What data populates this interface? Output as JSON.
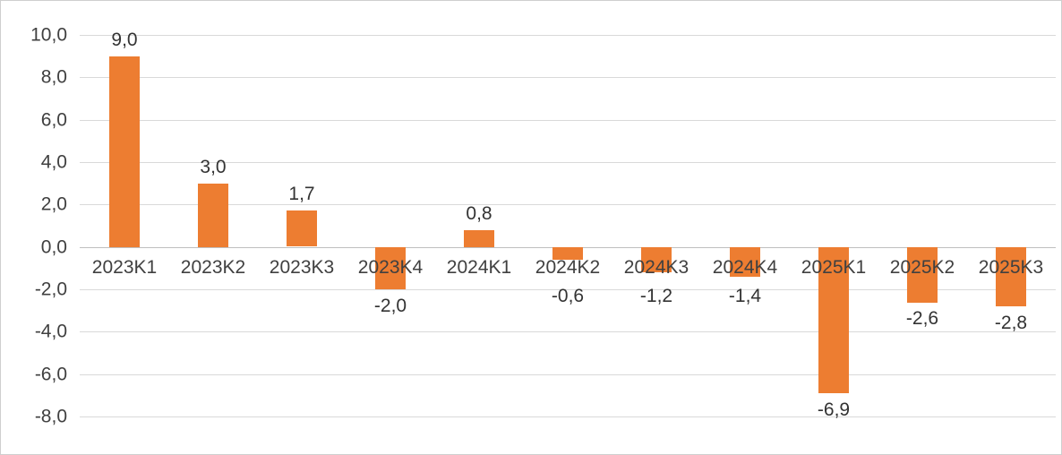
{
  "chart_data": {
    "type": "bar",
    "title": "",
    "xlabel": "",
    "ylabel": "",
    "categories": [
      "2023K1",
      "2023K2",
      "2023K3",
      "2023K4",
      "2024K1",
      "2024K2",
      "2024K3",
      "2024K4",
      "2025K1",
      "2025K2",
      "2025K3"
    ],
    "values": [
      9.0,
      3.0,
      1.7,
      -2.0,
      0.8,
      -0.6,
      -1.2,
      -1.4,
      -6.9,
      -2.6,
      -2.8
    ],
    "data_labels": [
      "9,0",
      "3,0",
      "1,7",
      "-2,0",
      "0,8",
      "-0,6",
      "-1,2",
      "-1,4",
      "-6,9",
      "-2,6",
      "-2,8"
    ],
    "ylim": [
      -8,
      10
    ],
    "y_tick_step": 2,
    "y_tick_labels": [
      "10,0",
      "8,0",
      "6,0",
      "4,0",
      "2,0",
      "0,0",
      "-2,0",
      "-4,0",
      "-6,0",
      "-8,0"
    ],
    "grid": true,
    "legend_position": "none",
    "bar_color": "#ED7D31",
    "decimal_separator": ","
  }
}
